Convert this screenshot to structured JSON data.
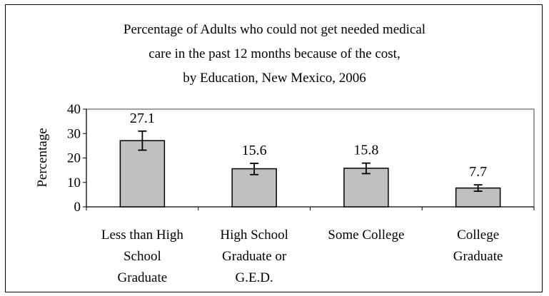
{
  "chart_data": {
    "type": "bar",
    "title": [
      "Percentage of Adults who could not get needed medical",
      "care in the past 12 months because of the cost,",
      "by Education, New Mexico, 2006"
    ],
    "ylabel": "Percentage",
    "xlabel": "",
    "ylim": [
      0,
      40
    ],
    "yticks": [
      "0",
      "10",
      "20",
      "30",
      "40"
    ],
    "categories": [
      [
        "Less than High",
        "School",
        "Graduate"
      ],
      [
        "High School",
        "Graduate or",
        "G.E.D."
      ],
      [
        "Some College"
      ],
      [
        "College",
        "Graduate"
      ]
    ],
    "values": [
      27.1,
      15.6,
      15.8,
      7.7
    ],
    "value_labels": [
      "27.1",
      "15.6",
      "15.8",
      "7.7"
    ],
    "error_bars": [
      {
        "low": 23.2,
        "high": 31.0
      },
      {
        "low": 13.2,
        "high": 17.8
      },
      {
        "low": 13.6,
        "high": 17.9
      },
      {
        "low": 6.4,
        "high": 9.0
      }
    ],
    "bar_color": "#c0c0c0",
    "grid": false,
    "legend": "none"
  }
}
